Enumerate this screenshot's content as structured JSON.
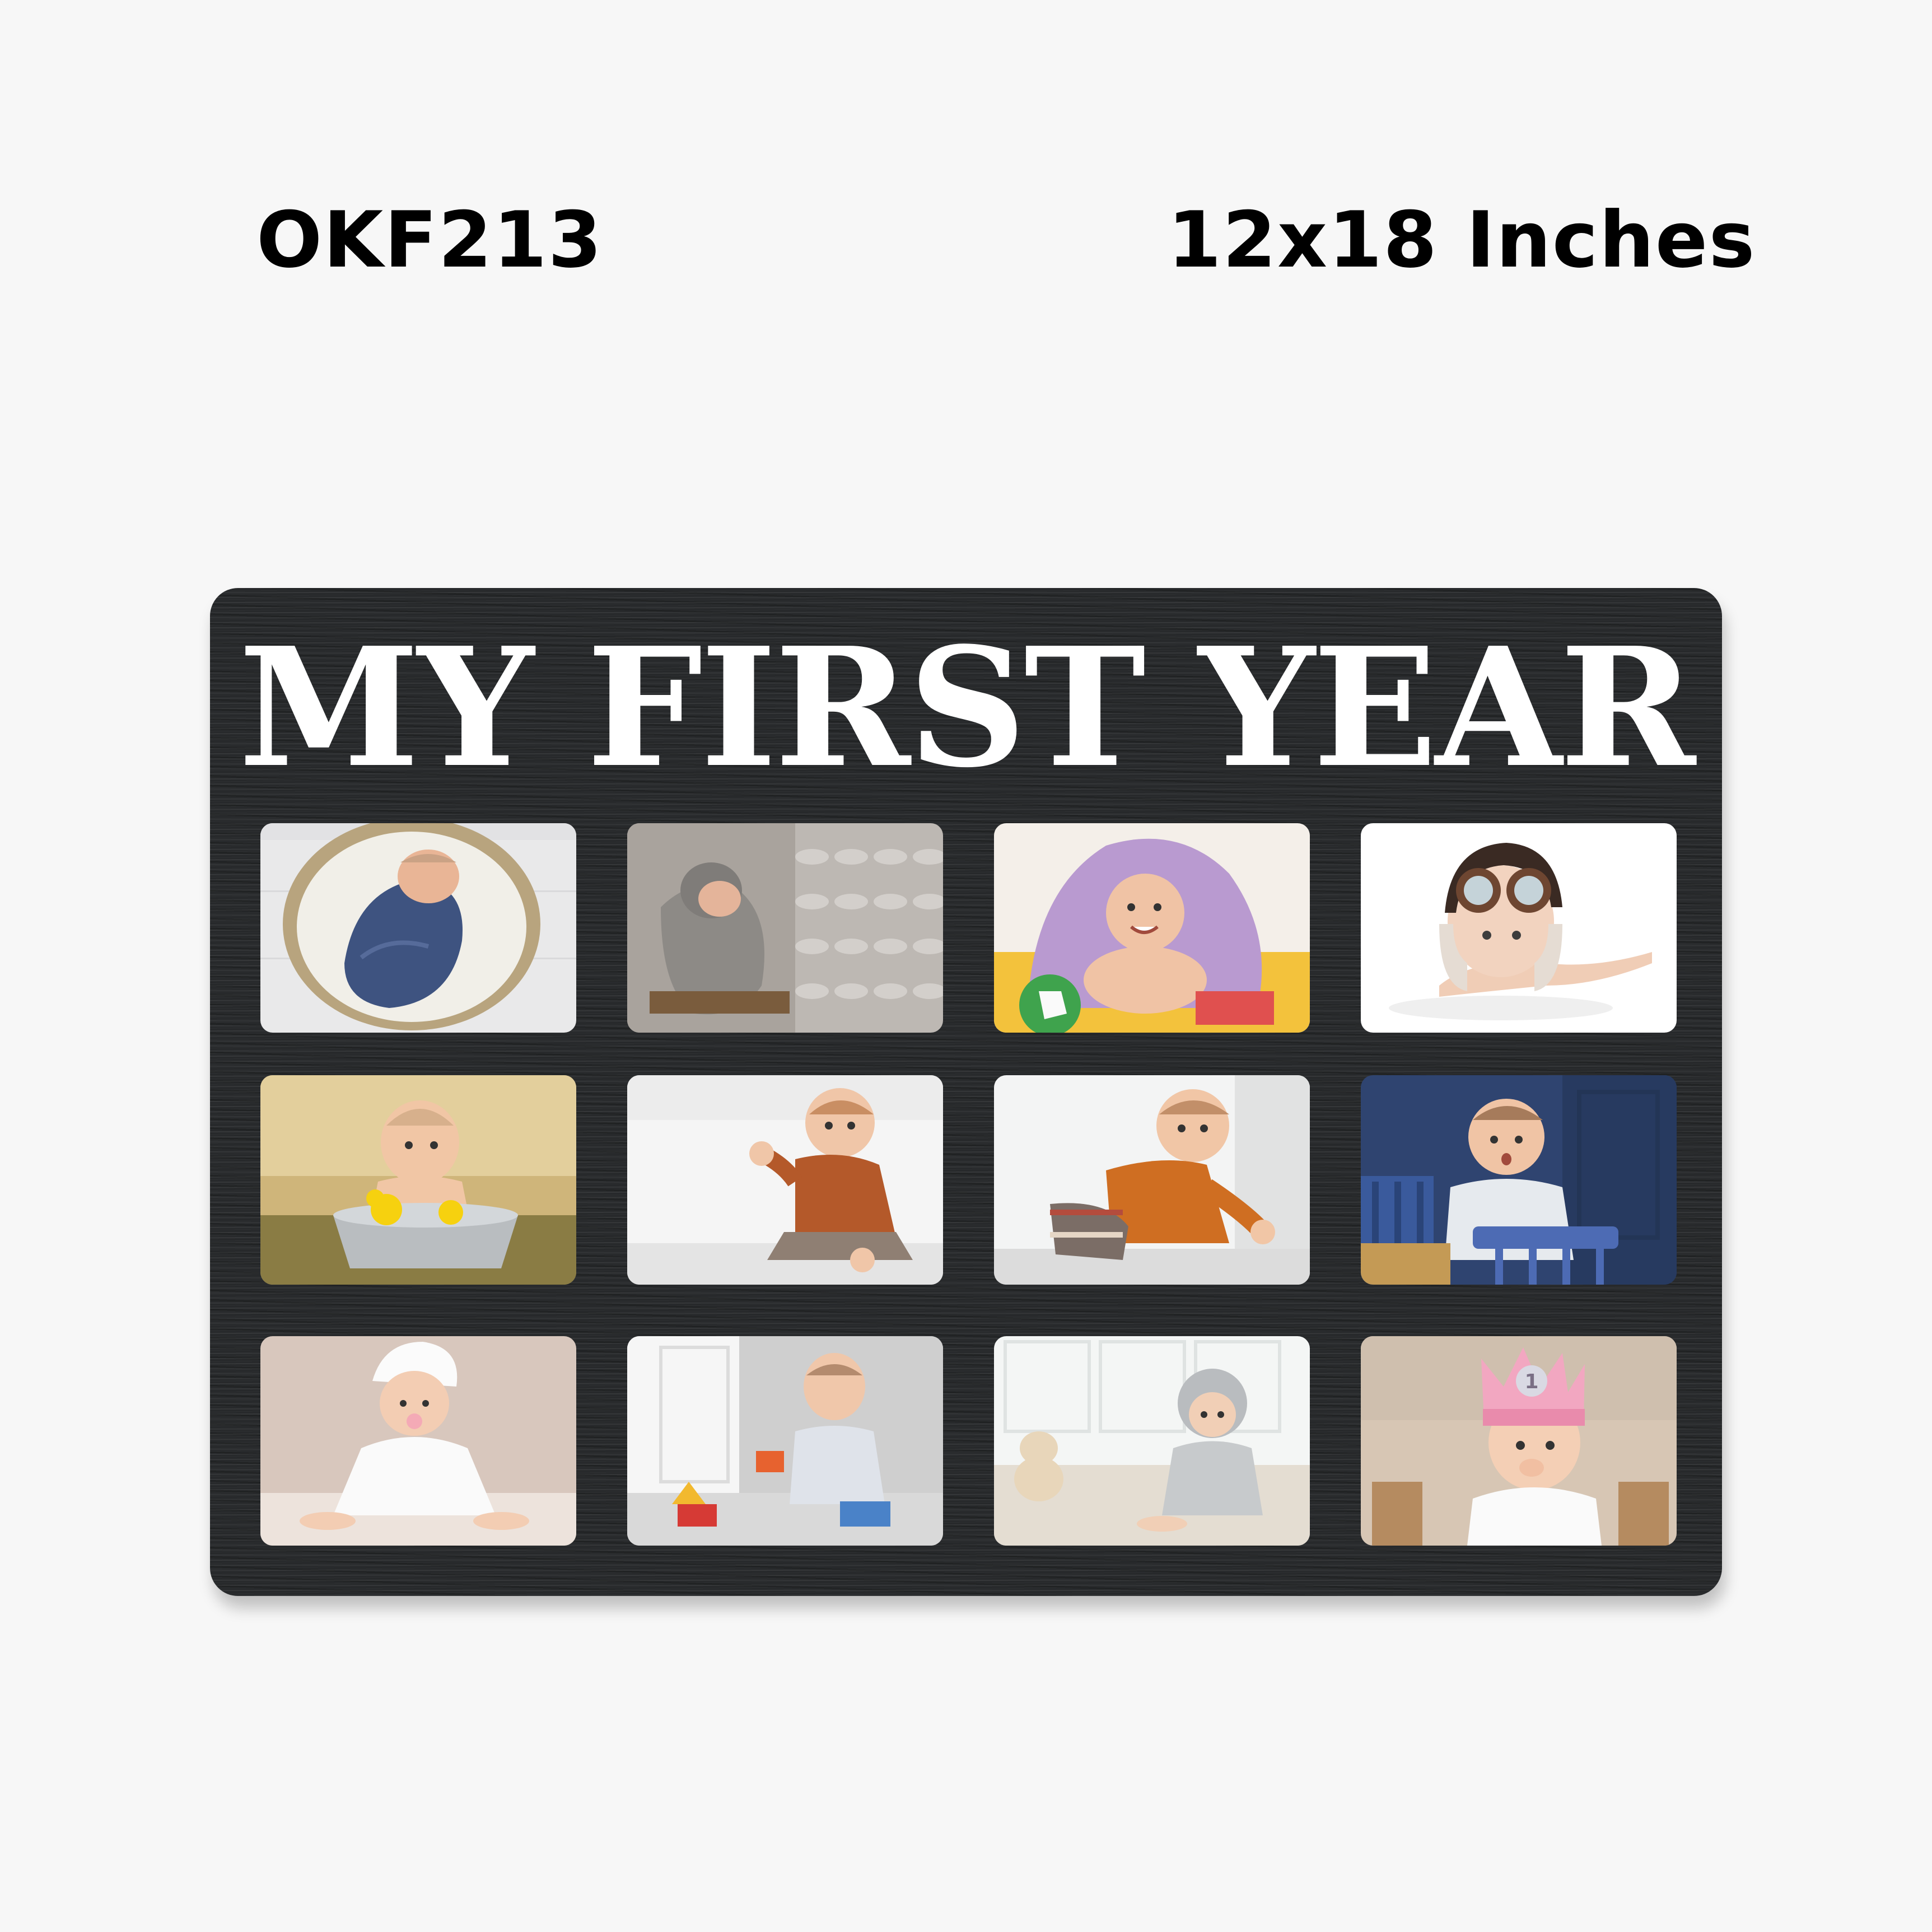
{
  "product": {
    "code": "OKF213",
    "size": "12x18 Inches"
  },
  "frame": {
    "title": "MY FIRST YEAR",
    "board_color": "#27292b",
    "photos": [
      {
        "icon": "baby-in-basket-photo-icon"
      },
      {
        "icon": "baby-sleeping-knit-blanket-photo-icon"
      },
      {
        "icon": "baby-under-purple-towel-photo-icon"
      },
      {
        "icon": "baby-aviator-hat-photo-icon"
      },
      {
        "icon": "baby-in-bucket-duck-photo-icon"
      },
      {
        "icon": "baby-crawling-waving-photo-icon"
      },
      {
        "icon": "baby-crawling-orange-sweater-photo-icon"
      },
      {
        "icon": "baby-blue-chair-photo-icon"
      },
      {
        "icon": "baby-white-towel-hat-photo-icon"
      },
      {
        "icon": "baby-playing-toys-photo-icon"
      },
      {
        "icon": "baby-grey-hood-teddy-photo-icon"
      },
      {
        "icon": "baby-birthday-crown-photo-icon",
        "crown_digit": "1"
      }
    ]
  }
}
